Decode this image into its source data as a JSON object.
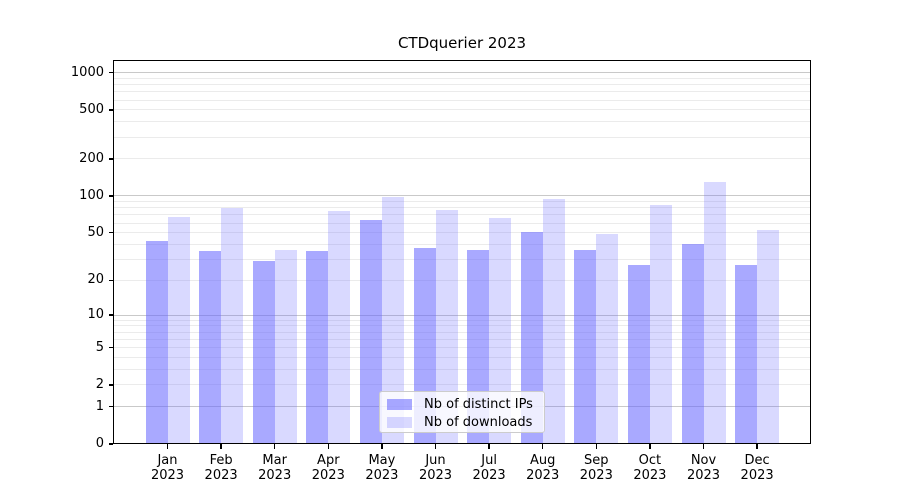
{
  "chart_data": {
    "type": "bar",
    "title": "CTDquerier 2023",
    "categories": [
      "Jan",
      "Feb",
      "Mar",
      "Apr",
      "May",
      "Jun",
      "Jul",
      "Aug",
      "Sep",
      "Oct",
      "Nov",
      "Dec"
    ],
    "year_label": "2023",
    "series": [
      {
        "name": "Nb of distinct IPs",
        "color": "#6666ff",
        "alpha": 0.56,
        "values": [
          43,
          35,
          29,
          35,
          64,
          37,
          36,
          51,
          36,
          27,
          40,
          27
        ]
      },
      {
        "name": "Nb of downloads",
        "color": "#6666ff",
        "alpha": 0.25,
        "values": [
          67,
          80,
          36,
          75,
          98,
          77,
          66,
          95,
          49,
          84,
          130,
          53
        ]
      }
    ],
    "yscale": "log1p",
    "yticks": [
      0,
      1,
      2,
      5,
      10,
      20,
      50,
      100,
      200,
      500,
      1000
    ],
    "ygrid_major": [
      1,
      10,
      100,
      1000
    ],
    "ygrid_minor_decades": [
      1,
      10,
      100
    ],
    "ylim": [
      0,
      1265
    ],
    "grid": true,
    "legend_position": "lower center",
    "colors": {
      "grid_major": "#c9c9c9",
      "grid_minor": "#ebebeb",
      "spine": "#000000",
      "background": "#ffffff",
      "legend_border": "#cccccc"
    }
  }
}
